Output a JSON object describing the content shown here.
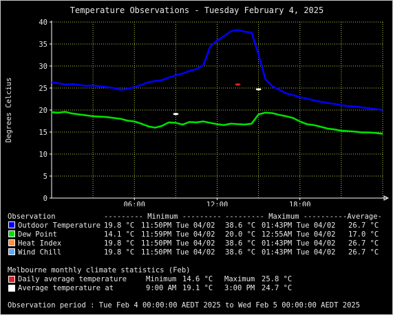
{
  "chart_data": {
    "type": "line",
    "title": "Temperature Observations - Tuesday February 4, 2025",
    "ylabel": "Degrees Celcius",
    "xlabel": "",
    "xlim": [
      0,
      24
    ],
    "ylim": [
      0,
      40
    ],
    "yticks": [
      0,
      5,
      10,
      15,
      20,
      25,
      30,
      35,
      40
    ],
    "xticks": [
      6,
      12,
      18
    ],
    "xtick_labels": [
      "06:00",
      "12:00",
      "18:00"
    ],
    "grid": true,
    "series": [
      {
        "name": "Outdoor Temperature",
        "color": "#0000ff",
        "x": [
          0,
          0.5,
          1,
          1.5,
          2,
          2.5,
          3,
          3.5,
          4,
          4.5,
          5,
          5.5,
          6,
          6.5,
          7,
          7.5,
          8,
          8.5,
          9,
          9.5,
          10,
          10.5,
          11,
          11.5,
          12,
          12.5,
          13,
          13.5,
          14,
          14.5,
          15,
          15.5,
          16,
          16.5,
          17,
          17.5,
          18,
          18.5,
          19,
          19.5,
          20,
          20.5,
          21,
          21.5,
          22,
          22.5,
          23,
          23.5,
          24
        ],
        "values": [
          26.3,
          26.1,
          25.8,
          25.9,
          25.7,
          25.5,
          25.6,
          25.4,
          25.2,
          25.0,
          24.6,
          24.8,
          25.2,
          25.7,
          26.3,
          26.6,
          26.8,
          27.4,
          27.9,
          28.3,
          28.9,
          29.3,
          30.2,
          34.5,
          35.8,
          36.8,
          37.9,
          38.2,
          37.8,
          37.6,
          32.6,
          27.0,
          25.4,
          24.6,
          23.8,
          23.4,
          22.9,
          22.6,
          22.2,
          21.9,
          21.6,
          21.4,
          21.1,
          20.9,
          20.8,
          20.6,
          20.4,
          20.2,
          20.0
        ]
      },
      {
        "name": "Dew Point",
        "color": "#00e000",
        "x": [
          0,
          0.5,
          1,
          1.5,
          2,
          2.5,
          3,
          3.5,
          4,
          4.5,
          5,
          5.5,
          6,
          6.5,
          7,
          7.5,
          8,
          8.5,
          9,
          9.5,
          10,
          10.5,
          11,
          11.5,
          12,
          12.5,
          13,
          13.5,
          14,
          14.5,
          15,
          15.5,
          16,
          16.5,
          17,
          17.5,
          18,
          18.5,
          19,
          19.5,
          20,
          20.5,
          21,
          21.5,
          22,
          22.5,
          23,
          23.5,
          24
        ],
        "values": [
          19.5,
          19.4,
          19.6,
          19.2,
          19.0,
          18.8,
          18.6,
          18.5,
          18.4,
          18.2,
          18.0,
          17.6,
          17.4,
          16.9,
          16.3,
          16.0,
          16.4,
          17.2,
          17.1,
          16.7,
          17.3,
          17.2,
          17.4,
          17.1,
          16.8,
          16.6,
          16.9,
          16.8,
          16.7,
          16.9,
          19.0,
          19.4,
          19.3,
          18.9,
          18.6,
          18.2,
          17.4,
          16.8,
          16.6,
          16.2,
          15.8,
          15.6,
          15.3,
          15.2,
          15.1,
          14.9,
          14.9,
          14.8,
          14.6
        ]
      },
      {
        "name": "Heat Index",
        "color": "#ff8c40",
        "x": [],
        "values": []
      },
      {
        "name": "Wind Chill",
        "color": "#60a8ff",
        "x": [],
        "values": []
      }
    ],
    "markers": [
      {
        "name": "Daily average temperature",
        "color": "#e02020",
        "x": 13.5,
        "y": 25.8
      },
      {
        "name": "Average temperature at 9:00 AM",
        "color": "#ffffff",
        "x": 9.0,
        "y": 19.1
      },
      {
        "name": "Average temperature at 3:00 PM",
        "color": "#ffffff",
        "x": 15.0,
        "y": 24.7
      }
    ]
  },
  "colors": {
    "background": "#000000",
    "grid": "#b8cc40",
    "frame": "#c8c8c8",
    "text": "#e8e8e8"
  },
  "table": {
    "head_obs": "Observation",
    "head_min": "--------- Minimum ---------",
    "head_max": "--------- Maximum ---------",
    "head_avg": "-Average-",
    "rows": [
      {
        "name": "Outdoor Temperature",
        "color": "#0000ff",
        "min_val": "19.8 °C",
        "min_time": "11:50PM Tue 04/02",
        "max_val": "38.6 °C",
        "max_time": "01:43PM Tue 04/02",
        "avg": "26.7 °C"
      },
      {
        "name": "Dew Point",
        "color": "#00e000",
        "min_val": "14.1 °C",
        "min_time": "11:59PM Tue 04/02",
        "max_val": "20.0 °C",
        "max_time": "12:55AM Tue 04/02",
        "avg": "17.0 °C"
      },
      {
        "name": "Heat Index",
        "color": "#ff8c40",
        "min_val": "19.8 °C",
        "min_time": "11:50PM Tue 04/02",
        "max_val": "38.6 °C",
        "max_time": "01:43PM Tue 04/02",
        "avg": "26.7 °C"
      },
      {
        "name": "Wind Chill",
        "color": "#60a8ff",
        "min_val": "19.8 °C",
        "min_time": "11:50PM Tue 04/02",
        "max_val": "38.6 °C",
        "max_time": "01:43PM Tue 04/02",
        "avg": "26.7 °C"
      }
    ]
  },
  "climate": {
    "heading": "Melbourne monthly climate statistics (Feb)",
    "daily": {
      "label": "Daily average temperature",
      "color": "#e02020",
      "min_label": "Minimum",
      "min_val": "14.6 °C",
      "max_label": "Maximum",
      "max_val": "25.8 °C"
    },
    "at": {
      "label": "Average temperature at",
      "color": "#ffffff",
      "t1": "9:00 AM",
      "v1": "19.1 °C",
      "t2": "3:00 PM",
      "v2": "24.7 °C"
    }
  },
  "footer": "Observation period : Tue Feb 4 00:00:00 AEDT 2025 to Wed Feb 5 00:00:00 AEDT 2025"
}
